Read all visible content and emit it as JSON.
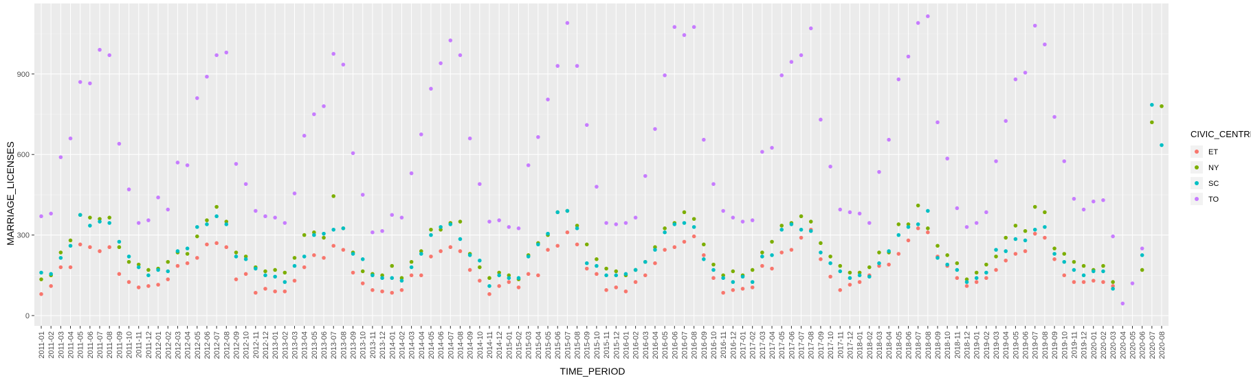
{
  "chart_data": {
    "type": "scatter",
    "title": "",
    "xlabel": "TIME_PERIOD",
    "ylabel": "MARRIAGE_LICENSES",
    "ylim": [
      0,
      1150
    ],
    "yticks": [
      0,
      300,
      600,
      900
    ],
    "grid": true,
    "legend": {
      "title": "CIVIC_CENTRE",
      "position": "right"
    },
    "colors": {
      "ET": "#F8766D",
      "NY": "#7CAE00",
      "SC": "#00BFC4",
      "TO": "#C77CFF"
    },
    "categories": [
      "2011-01",
      "2011-02",
      "2011-03",
      "2011-04",
      "2011-05",
      "2011-06",
      "2011-07",
      "2011-08",
      "2011-09",
      "2011-10",
      "2011-11",
      "2011-12",
      "2012-01",
      "2012-02",
      "2012-03",
      "2012-04",
      "2012-05",
      "2012-06",
      "2012-07",
      "2012-08",
      "2012-09",
      "2012-10",
      "2012-11",
      "2012-12",
      "2013-01",
      "2013-02",
      "2013-03",
      "2013-04",
      "2013-05",
      "2013-06",
      "2013-07",
      "2013-08",
      "2013-09",
      "2013-10",
      "2013-11",
      "2013-12",
      "2014-01",
      "2014-02",
      "2014-03",
      "2014-04",
      "2014-05",
      "2014-06",
      "2014-07",
      "2014-08",
      "2014-09",
      "2014-10",
      "2014-11",
      "2014-12",
      "2015-01",
      "2015-02",
      "2015-03",
      "2015-04",
      "2015-05",
      "2015-06",
      "2015-07",
      "2015-08",
      "2015-09",
      "2015-10",
      "2015-11",
      "2015-12",
      "2016-01",
      "2016-02",
      "2016-03",
      "2016-04",
      "2016-05",
      "2016-06",
      "2016-07",
      "2016-08",
      "2016-09",
      "2016-10",
      "2016-11",
      "2016-12",
      "2017-01",
      "2017-02",
      "2017-03",
      "2017-04",
      "2017-05",
      "2017-06",
      "2017-07",
      "2017-08",
      "2017-09",
      "2017-10",
      "2017-11",
      "2017-12",
      "2018-01",
      "2018-02",
      "2018-03",
      "2018-04",
      "2018-05",
      "2018-06",
      "2018-07",
      "2018-08",
      "2018-09",
      "2018-10",
      "2018-11",
      "2018-12",
      "2019-01",
      "2019-02",
      "2019-03",
      "2019-04",
      "2019-05",
      "2019-06",
      "2019-07",
      "2019-08",
      "2019-09",
      "2019-10",
      "2019-11",
      "2019-12",
      "2020-01",
      "2020-02",
      "2020-03",
      "2020-04",
      "2020-05",
      "2020-06",
      "2020-07",
      "2020-08"
    ],
    "series": [
      {
        "name": "ET",
        "values": [
          80,
          110,
          180,
          180,
          265,
          255,
          240,
          255,
          155,
          125,
          105,
          110,
          115,
          135,
          185,
          195,
          215,
          265,
          270,
          255,
          135,
          155,
          85,
          100,
          90,
          90,
          130,
          180,
          225,
          215,
          260,
          245,
          160,
          120,
          95,
          90,
          85,
          95,
          150,
          150,
          220,
          240,
          255,
          240,
          170,
          130,
          80,
          110,
          125,
          105,
          155,
          150,
          245,
          260,
          310,
          265,
          175,
          155,
          95,
          105,
          90,
          125,
          150,
          195,
          245,
          255,
          275,
          295,
          225,
          140,
          85,
          95,
          100,
          105,
          185,
          175,
          235,
          245,
          290,
          320,
          210,
          145,
          95,
          115,
          125,
          150,
          185,
          190,
          230,
          280,
          325,
          310,
          220,
          185,
          140,
          110,
          125,
          140,
          170,
          205,
          230,
          240,
          305,
          290,
          210,
          150,
          125,
          125,
          130,
          125,
          110,
          null,
          null,
          null,
          null,
          null
        ]
      },
      {
        "name": "NY",
        "values": [
          135,
          150,
          235,
          280,
          375,
          365,
          360,
          365,
          255,
          200,
          190,
          170,
          175,
          200,
          235,
          230,
          295,
          355,
          405,
          350,
          235,
          220,
          180,
          165,
          170,
          160,
          215,
          300,
          310,
          290,
          445,
          325,
          235,
          165,
          155,
          150,
          185,
          140,
          200,
          240,
          320,
          320,
          345,
          350,
          230,
          180,
          140,
          160,
          150,
          135,
          225,
          270,
          300,
          385,
          390,
          335,
          265,
          210,
          175,
          165,
          150,
          170,
          200,
          255,
          325,
          345,
          385,
          360,
          265,
          190,
          150,
          165,
          150,
          170,
          235,
          275,
          335,
          345,
          370,
          350,
          270,
          220,
          185,
          160,
          160,
          180,
          235,
          235,
          340,
          340,
          410,
          325,
          260,
          225,
          195,
          135,
          160,
          190,
          220,
          290,
          335,
          315,
          405,
          385,
          250,
          230,
          200,
          185,
          170,
          185,
          125,
          null,
          null,
          170,
          720,
          780
        ]
      },
      {
        "name": "SC",
        "values": [
          160,
          155,
          215,
          260,
          375,
          335,
          350,
          345,
          275,
          220,
          180,
          150,
          170,
          165,
          240,
          250,
          330,
          340,
          370,
          340,
          220,
          210,
          175,
          150,
          145,
          125,
          185,
          220,
          300,
          305,
          320,
          325,
          230,
          210,
          150,
          140,
          140,
          130,
          180,
          230,
          300,
          330,
          340,
          285,
          225,
          205,
          110,
          150,
          140,
          140,
          220,
          265,
          305,
          385,
          390,
          325,
          195,
          185,
          150,
          150,
          155,
          170,
          200,
          245,
          310,
          340,
          345,
          330,
          210,
          170,
          140,
          125,
          145,
          125,
          220,
          225,
          320,
          340,
          320,
          315,
          235,
          195,
          165,
          140,
          150,
          145,
          195,
          240,
          300,
          330,
          340,
          390,
          215,
          190,
          170,
          125,
          140,
          160,
          245,
          240,
          285,
          280,
          320,
          330,
          230,
          200,
          170,
          150,
          165,
          165,
          100,
          null,
          null,
          225,
          785,
          635
        ]
      },
      {
        "name": "TO",
        "values": [
          370,
          380,
          590,
          660,
          870,
          865,
          990,
          970,
          640,
          470,
          345,
          355,
          440,
          395,
          570,
          560,
          810,
          890,
          970,
          980,
          565,
          490,
          390,
          370,
          365,
          345,
          455,
          670,
          750,
          780,
          975,
          935,
          605,
          450,
          310,
          315,
          375,
          365,
          530,
          675,
          845,
          940,
          1025,
          970,
          660,
          490,
          350,
          355,
          330,
          325,
          560,
          665,
          805,
          930,
          1090,
          930,
          710,
          480,
          345,
          340,
          345,
          365,
          520,
          695,
          895,
          1075,
          1045,
          1075,
          655,
          490,
          390,
          365,
          350,
          355,
          610,
          625,
          895,
          945,
          970,
          1070,
          730,
          555,
          395,
          385,
          380,
          345,
          535,
          655,
          880,
          965,
          1090,
          1115,
          720,
          585,
          400,
          330,
          345,
          385,
          575,
          725,
          880,
          905,
          1080,
          1010,
          740,
          575,
          435,
          395,
          425,
          430,
          295,
          45,
          120,
          250,
          null,
          null
        ]
      }
    ]
  }
}
